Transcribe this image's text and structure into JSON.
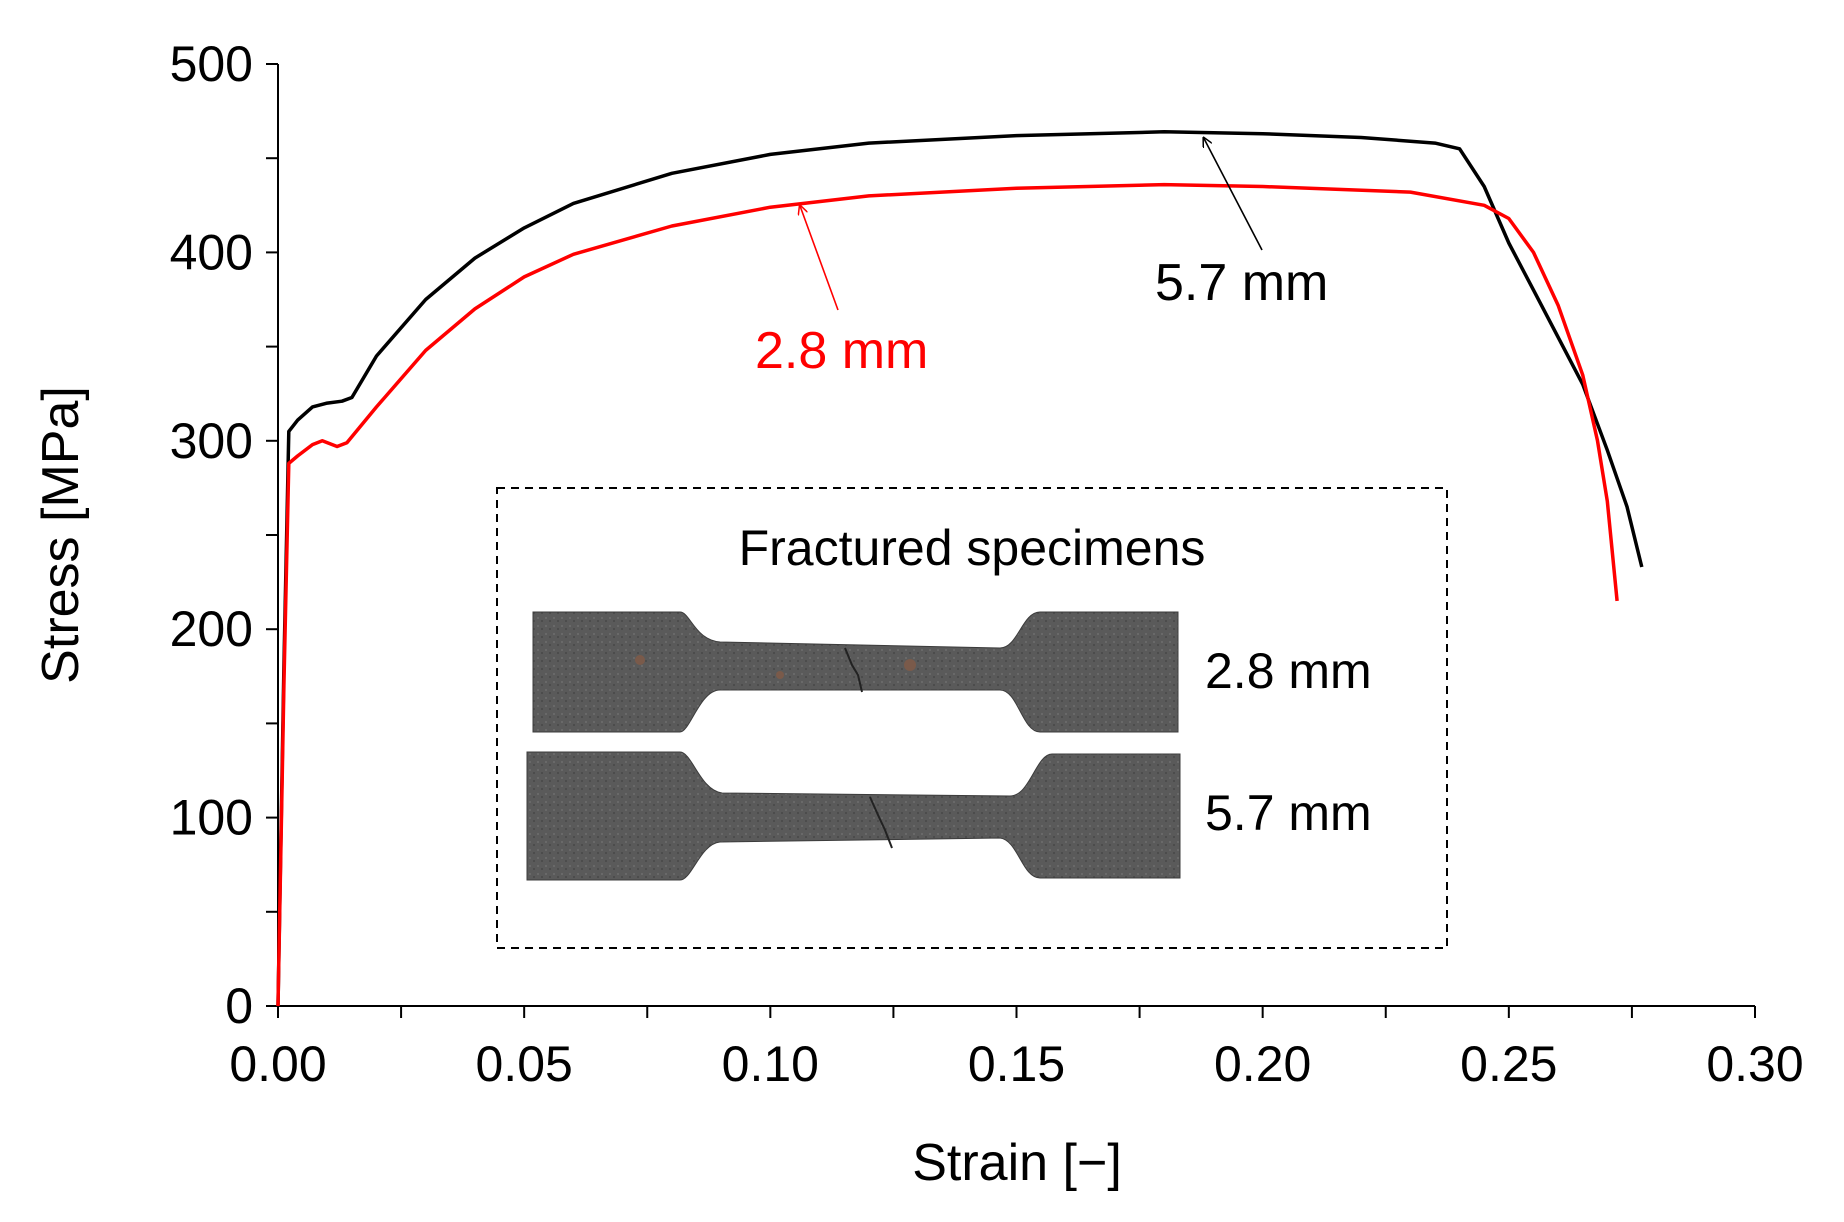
{
  "chart_data": {
    "type": "line",
    "xlabel": "Strain [−]",
    "ylabel": "Stress [MPa]",
    "xlim": [
      0,
      0.3
    ],
    "ylim": [
      0,
      500
    ],
    "x_ticks": [
      "0.00",
      "0.05",
      "0.10",
      "0.15",
      "0.20",
      "0.25",
      "0.30"
    ],
    "y_ticks": [
      "0",
      "100",
      "200",
      "300",
      "400",
      "500"
    ],
    "grid": false,
    "legend": "none",
    "series": [
      {
        "name": "5.7 mm",
        "color": "#000000",
        "points": [
          [
            0,
            0
          ],
          [
            0.0012,
            180
          ],
          [
            0.0022,
            305
          ],
          [
            0.004,
            311
          ],
          [
            0.007,
            318
          ],
          [
            0.01,
            320
          ],
          [
            0.013,
            321
          ],
          [
            0.015,
            323
          ],
          [
            0.02,
            345
          ],
          [
            0.03,
            375
          ],
          [
            0.04,
            397
          ],
          [
            0.05,
            413
          ],
          [
            0.06,
            426
          ],
          [
            0.08,
            442
          ],
          [
            0.1,
            452
          ],
          [
            0.12,
            458
          ],
          [
            0.15,
            462
          ],
          [
            0.18,
            464
          ],
          [
            0.2,
            463
          ],
          [
            0.22,
            461
          ],
          [
            0.235,
            458
          ],
          [
            0.24,
            455
          ],
          [
            0.245,
            435
          ],
          [
            0.25,
            405
          ],
          [
            0.255,
            380
          ],
          [
            0.26,
            355
          ],
          [
            0.265,
            330
          ],
          [
            0.27,
            295
          ],
          [
            0.274,
            265
          ],
          [
            0.277,
            233
          ]
        ]
      },
      {
        "name": "2.8 mm",
        "color": "#ff0000",
        "points": [
          [
            0,
            0
          ],
          [
            0.0012,
            170
          ],
          [
            0.0022,
            288
          ],
          [
            0.004,
            292
          ],
          [
            0.007,
            298
          ],
          [
            0.009,
            300
          ],
          [
            0.012,
            297
          ],
          [
            0.014,
            299
          ],
          [
            0.02,
            318
          ],
          [
            0.03,
            348
          ],
          [
            0.04,
            370
          ],
          [
            0.05,
            387
          ],
          [
            0.06,
            399
          ],
          [
            0.08,
            414
          ],
          [
            0.1,
            424
          ],
          [
            0.12,
            430
          ],
          [
            0.15,
            434
          ],
          [
            0.18,
            436
          ],
          [
            0.2,
            435
          ],
          [
            0.23,
            432
          ],
          [
            0.245,
            425
          ],
          [
            0.25,
            418
          ],
          [
            0.255,
            400
          ],
          [
            0.26,
            372
          ],
          [
            0.265,
            335
          ],
          [
            0.268,
            300
          ],
          [
            0.27,
            268
          ],
          [
            0.272,
            215
          ]
        ]
      }
    ],
    "annotations": [
      {
        "text": "5.7 mm",
        "color": "#000000",
        "arrow_to": [
          0.188,
          463
        ]
      },
      {
        "text": "2.8 mm",
        "color": "#ff0000",
        "arrow_to": [
          0.106,
          427
        ]
      }
    ],
    "inset": {
      "title": "Fractured specimens",
      "labels": [
        "2.8 mm",
        "5.7 mm"
      ]
    }
  }
}
